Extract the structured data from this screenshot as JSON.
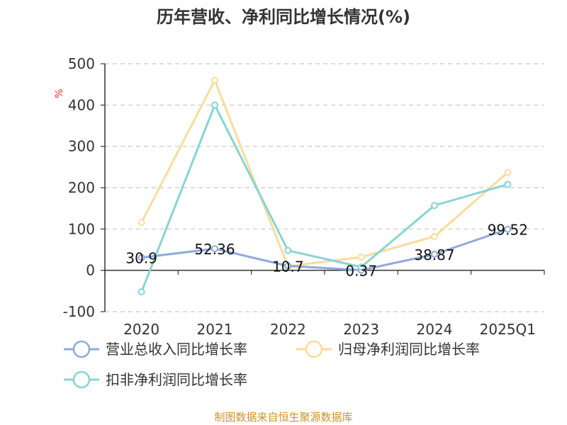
{
  "chart_data": {
    "type": "line",
    "title": "历年营收、净利同比增长情况(%)",
    "ylabel": "%",
    "categories": [
      "2020",
      "2021",
      "2022",
      "2023",
      "2024",
      "2025Q1"
    ],
    "ylim": [
      -100,
      500
    ],
    "yticks": [
      -100,
      0,
      100,
      200,
      300,
      400,
      500
    ],
    "grid": true,
    "legend_position": "bottom",
    "series": [
      {
        "name": "营业总收入同比增长率",
        "color": "#8eaad8",
        "values": [
          30.9,
          52.36,
          10.7,
          0.37,
          38.87,
          99.52
        ],
        "labels": [
          "30.9",
          "52.36",
          "10.7",
          "0.37",
          "38.87",
          "99.52"
        ]
      },
      {
        "name": "归母净利润同比增长率",
        "color": "#f9dc9c",
        "values": [
          116,
          460,
          10,
          32,
          82,
          237
        ]
      },
      {
        "name": "扣非净利润同比增长率",
        "color": "#86d5d2",
        "values": [
          -52,
          400,
          48,
          8,
          157,
          208
        ]
      }
    ]
  },
  "footer": {
    "source": "制图数据来自恒生聚源数据库"
  }
}
